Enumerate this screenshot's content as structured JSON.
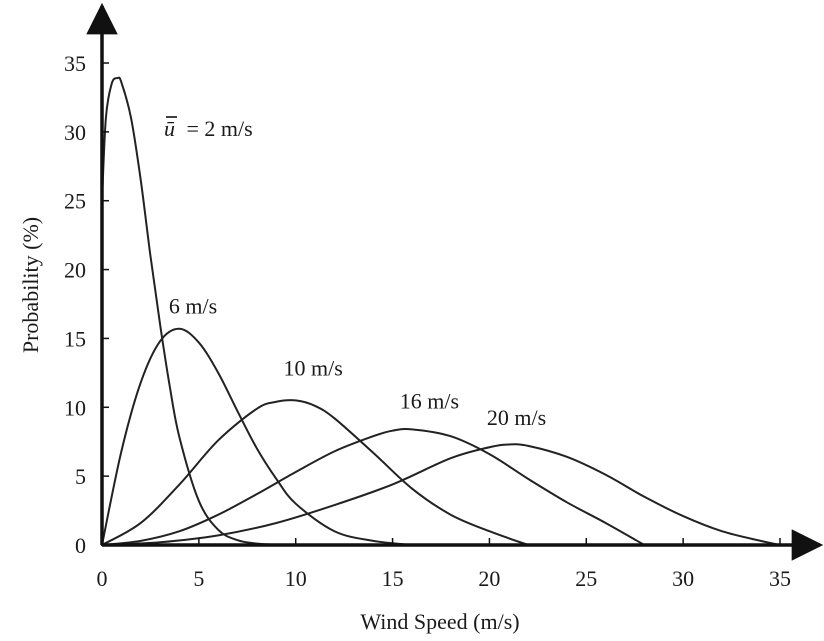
{
  "chart_data": {
    "type": "line",
    "title": "",
    "xlabel": "Wind Speed (m/s)",
    "ylabel": "Probability (%)",
    "xlim": [
      0,
      37
    ],
    "ylim": [
      0,
      38
    ],
    "x_ticks": [
      0,
      5,
      10,
      15,
      20,
      25,
      30,
      35
    ],
    "y_ticks": [
      0,
      5,
      10,
      15,
      20,
      25,
      30,
      35
    ],
    "grid": false,
    "legend": "none (curves labelled directly)",
    "line_color": "#222222",
    "series": [
      {
        "label_prefix": "ū",
        "name": "= 2 m/s",
        "x": [
          0,
          0.2,
          0.5,
          0.8,
          1.0,
          1.5,
          2,
          2.5,
          3,
          3.5,
          4,
          5,
          6,
          7,
          8,
          9,
          10
        ],
        "values": [
          25,
          31,
          33.5,
          33.9,
          33.6,
          31,
          26.5,
          21,
          16,
          11.5,
          7.8,
          3.2,
          1.1,
          0.35,
          0.1,
          0.02,
          0
        ]
      },
      {
        "name": "6 m/s",
        "x": [
          0,
          1,
          2,
          3,
          4,
          5,
          6,
          7,
          8,
          9,
          10,
          12,
          14,
          16
        ],
        "values": [
          0,
          6.8,
          11.8,
          14.8,
          15.7,
          14.7,
          12.5,
          9.7,
          7.0,
          4.8,
          3.0,
          1.0,
          0.3,
          0
        ],
        "label_at": [
          4.7,
          16.8
        ]
      },
      {
        "name": "10 m/s",
        "x": [
          0,
          2,
          4,
          6,
          8,
          9,
          10,
          11,
          12,
          14,
          16,
          18,
          20,
          22
        ],
        "values": [
          0,
          1.6,
          4.4,
          7.6,
          9.9,
          10.4,
          10.5,
          10.1,
          9.2,
          6.7,
          4.1,
          2.2,
          1.0,
          0
        ],
        "label_at": [
          10.9,
          12.3
        ]
      },
      {
        "name": "16 m/s",
        "x": [
          0,
          2,
          4,
          6,
          8,
          10,
          12,
          14,
          15,
          16,
          18,
          20,
          22,
          24,
          26,
          28
        ],
        "values": [
          0,
          0.3,
          1.0,
          2.2,
          3.7,
          5.3,
          6.8,
          7.9,
          8.3,
          8.4,
          7.9,
          6.6,
          4.8,
          3.1,
          1.6,
          0
        ],
        "label_at": [
          16.9,
          9.9
        ]
      },
      {
        "name": "20 m/s",
        "x": [
          0,
          3,
          6,
          9,
          12,
          15,
          18,
          20,
          21,
          22,
          24,
          26,
          28,
          30,
          32,
          34,
          35
        ],
        "values": [
          0,
          0.2,
          0.7,
          1.6,
          2.9,
          4.4,
          6.3,
          7.1,
          7.3,
          7.2,
          6.4,
          5.1,
          3.5,
          2.1,
          1.0,
          0.3,
          0
        ],
        "label_at": [
          21.4,
          8.7
        ]
      }
    ]
  }
}
